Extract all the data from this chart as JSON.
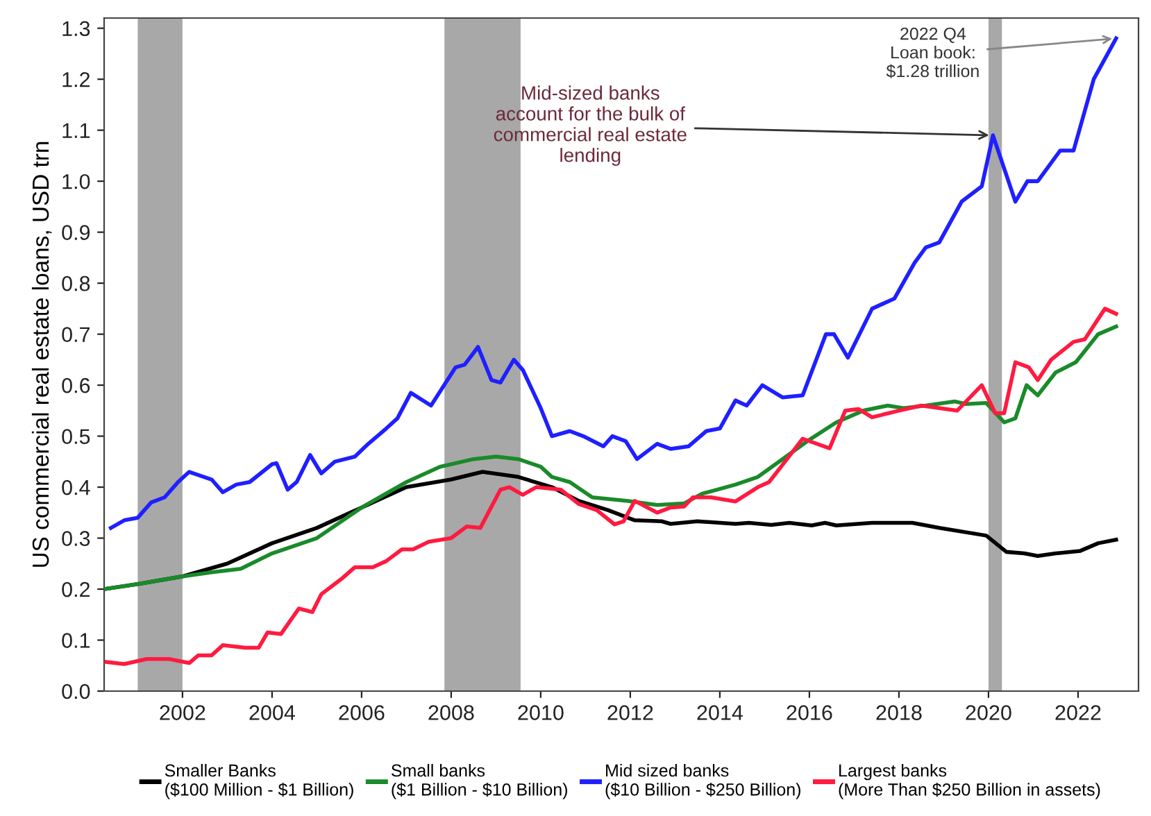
{
  "chart_data": {
    "type": "line",
    "ylabel": "US commercial real estate loans, USD trn",
    "xlim": [
      2000.25,
      2023.35
    ],
    "xticks": [
      2002,
      2004,
      2006,
      2008,
      2010,
      2012,
      2014,
      2016,
      2018,
      2020,
      2022
    ],
    "ylim": [
      0.0,
      1.32
    ],
    "yticks": [
      {
        "value": 0,
        "label": "0.0"
      },
      0.1,
      0.2,
      0.3,
      0.4,
      0.5,
      0.6,
      0.7,
      0.8,
      0.9,
      {
        "value": 1,
        "label": "1.0"
      },
      1.1,
      1.2,
      1.3
    ],
    "grid": false,
    "legend": "bottom",
    "line_style": "solid",
    "marker": "none",
    "bands": [
      {
        "axis": "x",
        "from": 2001.0,
        "to": 2002.0,
        "color": "#a8a8a8"
      },
      {
        "axis": "x",
        "from": 2007.85,
        "to": 2009.55,
        "color": "#a8a8a8"
      },
      {
        "axis": "x",
        "from": 2020.0,
        "to": 2020.3,
        "color": "#a8a8a8"
      }
    ],
    "annotations": [
      {
        "text": "2022 Q4\nLoan book:\n$1.28 trillion",
        "x": 2022.85,
        "y": 1.28
      },
      {
        "text": "Mid-sized banks\naccount for the bulk of\ncommercial real estate\nlending",
        "x": 2020.1,
        "y": 1.09
      }
    ],
    "series": [
      {
        "name": "Smaller Banks\n($100 Million - $1 Billion)",
        "color": "#000000",
        "x": [
          2000.25,
          2001.0,
          2002.0,
          2003.0,
          2004.0,
          2005.0,
          2006.0,
          2007.0,
          2008.0,
          2008.7,
          2009.5,
          2010.25,
          2010.85,
          2011.5,
          2012.1,
          2012.7,
          2012.9,
          2013.5,
          2014.35,
          2014.65,
          2015.15,
          2015.55,
          2016.05,
          2016.35,
          2016.6,
          2017.4,
          2018.3,
          2018.9,
          2019.95,
          2020.4,
          2020.8,
          2021.1,
          2021.5,
          2022.05,
          2022.45,
          2022.85
        ],
        "values": [
          0.2,
          0.21,
          0.225,
          0.25,
          0.29,
          0.32,
          0.36,
          0.4,
          0.415,
          0.43,
          0.42,
          0.4,
          0.373,
          0.355,
          0.335,
          0.333,
          0.328,
          0.333,
          0.328,
          0.33,
          0.326,
          0.33,
          0.325,
          0.33,
          0.325,
          0.33,
          0.33,
          0.32,
          0.305,
          0.273,
          0.27,
          0.265,
          0.27,
          0.275,
          0.29,
          0.297
        ]
      },
      {
        "name": "Small banks\n($1 Billion - $10 Billion)",
        "color": "#1a8a2a",
        "x": [
          2000.25,
          2001.0,
          2002.0,
          2002.65,
          2003.3,
          2004.0,
          2005.0,
          2006.0,
          2007.0,
          2007.75,
          2008.5,
          2009.0,
          2009.5,
          2010.0,
          2010.25,
          2010.65,
          2011.15,
          2011.95,
          2012.6,
          2013.2,
          2013.6,
          2014.35,
          2014.85,
          2015.4,
          2015.95,
          2016.6,
          2017.2,
          2017.75,
          2018.1,
          2018.6,
          2019.25,
          2019.5,
          2019.95,
          2020.35,
          2020.6,
          2020.85,
          2021.1,
          2021.5,
          2021.95,
          2022.45,
          2022.85
        ],
        "values": [
          0.2,
          0.21,
          0.225,
          0.233,
          0.24,
          0.27,
          0.3,
          0.36,
          0.41,
          0.44,
          0.455,
          0.46,
          0.455,
          0.44,
          0.42,
          0.41,
          0.38,
          0.373,
          0.365,
          0.368,
          0.387,
          0.405,
          0.42,
          0.455,
          0.49,
          0.527,
          0.55,
          0.56,
          0.555,
          0.56,
          0.568,
          0.563,
          0.565,
          0.527,
          0.535,
          0.6,
          0.58,
          0.625,
          0.645,
          0.7,
          0.715
        ]
      },
      {
        "name": "Mid sized banks\n($10 Billion - $250 Billion)",
        "color": "#1f1fff",
        "x": [
          2000.4,
          2000.7,
          2001.0,
          2001.3,
          2001.6,
          2001.9,
          2002.15,
          2002.65,
          2002.9,
          2003.2,
          2003.5,
          2004.0,
          2004.1,
          2004.35,
          2004.55,
          2004.85,
          2005.1,
          2005.4,
          2005.85,
          2006.15,
          2006.55,
          2006.8,
          2007.1,
          2007.55,
          2008.1,
          2008.3,
          2008.6,
          2008.9,
          2009.1,
          2009.4,
          2009.6,
          2010.0,
          2010.25,
          2010.65,
          2010.95,
          2011.4,
          2011.6,
          2011.9,
          2012.15,
          2012.6,
          2012.9,
          2013.3,
          2013.7,
          2014.0,
          2014.35,
          2014.6,
          2014.95,
          2015.4,
          2015.85,
          2016.37,
          2016.55,
          2016.86,
          2017.4,
          2017.9,
          2018.35,
          2018.6,
          2018.9,
          2019.4,
          2019.85,
          2020.1,
          2020.6,
          2020.87,
          2021.1,
          2021.6,
          2021.9,
          2022.35,
          2022.85
        ],
        "values": [
          0.32,
          0.335,
          0.34,
          0.37,
          0.38,
          0.41,
          0.43,
          0.415,
          0.39,
          0.405,
          0.41,
          0.445,
          0.447,
          0.395,
          0.41,
          0.463,
          0.427,
          0.45,
          0.46,
          0.485,
          0.515,
          0.535,
          0.585,
          0.56,
          0.635,
          0.64,
          0.675,
          0.61,
          0.605,
          0.65,
          0.63,
          0.555,
          0.5,
          0.51,
          0.5,
          0.48,
          0.5,
          0.49,
          0.455,
          0.485,
          0.475,
          0.48,
          0.51,
          0.515,
          0.57,
          0.56,
          0.6,
          0.576,
          0.58,
          0.7,
          0.7,
          0.654,
          0.75,
          0.77,
          0.84,
          0.87,
          0.88,
          0.96,
          0.99,
          1.09,
          0.96,
          1.0,
          1.0,
          1.06,
          1.06,
          1.2,
          1.28
        ]
      },
      {
        "name": "Largest banks\n(More Than $250 Billion in assets)",
        "color": "#ff1a40",
        "x": [
          2000.3,
          2000.7,
          2001.2,
          2001.7,
          2002.15,
          2002.35,
          2002.65,
          2002.9,
          2003.4,
          2003.7,
          2003.9,
          2004.2,
          2004.6,
          2004.9,
          2005.1,
          2005.55,
          2005.85,
          2006.25,
          2006.55,
          2006.9,
          2007.15,
          2007.5,
          2008.0,
          2008.35,
          2008.65,
          2009.1,
          2009.3,
          2009.6,
          2009.9,
          2010.45,
          2010.85,
          2011.25,
          2011.65,
          2011.85,
          2012.1,
          2012.6,
          2012.9,
          2013.2,
          2013.4,
          2013.8,
          2014.35,
          2014.85,
          2015.1,
          2015.5,
          2015.85,
          2016.45,
          2016.8,
          2017.1,
          2017.4,
          2018.0,
          2018.5,
          2019.3,
          2019.85,
          2020.15,
          2020.35,
          2020.6,
          2020.9,
          2021.1,
          2021.4,
          2021.9,
          2022.15,
          2022.6,
          2022.85
        ],
        "values": [
          0.057,
          0.053,
          0.063,
          0.063,
          0.055,
          0.07,
          0.07,
          0.09,
          0.085,
          0.085,
          0.115,
          0.112,
          0.162,
          0.155,
          0.19,
          0.22,
          0.243,
          0.243,
          0.255,
          0.278,
          0.278,
          0.293,
          0.3,
          0.323,
          0.32,
          0.395,
          0.4,
          0.385,
          0.4,
          0.395,
          0.367,
          0.355,
          0.327,
          0.333,
          0.373,
          0.35,
          0.36,
          0.362,
          0.38,
          0.38,
          0.372,
          0.4,
          0.41,
          0.455,
          0.495,
          0.476,
          0.55,
          0.553,
          0.537,
          0.55,
          0.56,
          0.55,
          0.6,
          0.545,
          0.545,
          0.645,
          0.635,
          0.61,
          0.65,
          0.685,
          0.69,
          0.75,
          0.74
        ]
      }
    ]
  }
}
